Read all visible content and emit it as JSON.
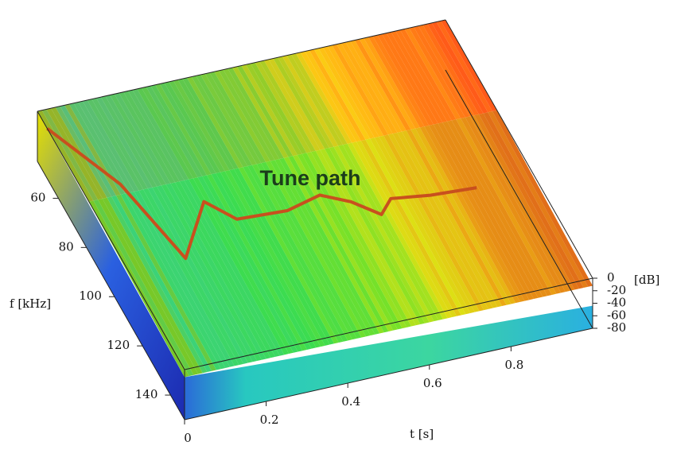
{
  "chart_data": {
    "type": "surface3d",
    "annotation": "Tune path",
    "xlabel": "t [s]",
    "ylabel": "f [kHz]",
    "zlabel": "[dB]",
    "xlim": [
      0,
      1
    ],
    "xticks": [
      0,
      0.2,
      0.4,
      0.6,
      0.8
    ],
    "ylim": [
      45,
      150
    ],
    "yticks": [
      60,
      80,
      100,
      120,
      140
    ],
    "zlim": [
      -80,
      0
    ],
    "zticks": [
      0,
      -20,
      -40,
      -60,
      -80
    ],
    "series": [
      {
        "color": "#c8501e",
        "x": [
          0.0,
          0.09,
          0.14,
          0.25,
          0.3,
          0.42,
          0.51,
          0.57,
          0.62,
          0.66,
          0.75,
          0.86
        ],
        "values": [
          52,
          78,
          110,
          91,
          100,
          101,
          98,
          103,
          110,
          105,
          107,
          108
        ]
      }
    ]
  }
}
